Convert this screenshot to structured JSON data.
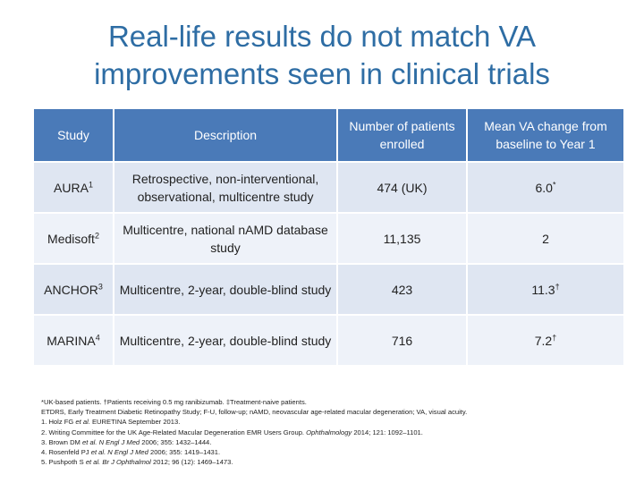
{
  "title": {
    "line1": "Real-life results do not match VA",
    "line2": "improvements seen in clinical trials"
  },
  "table": {
    "headers": {
      "study": "Study",
      "description": "Description",
      "patients": "Number of patients enrolled",
      "va_change": "Mean VA change from baseline to Year 1"
    },
    "rows": [
      {
        "study": "AURA",
        "study_ref": "1",
        "description": "Retrospective, non-interventional, observational, multicentre study",
        "patients": "474 (UK)",
        "va_change": "6.0",
        "va_mark": "*"
      },
      {
        "study": "Medisoft",
        "study_ref": "2",
        "description": "Multicentre, national nAMD database study",
        "patients": "11,135",
        "va_change": "2",
        "va_mark": ""
      },
      {
        "study": "ANCHOR",
        "study_ref": "3",
        "description": "Multicentre, 2-year, double-blind study",
        "patients": "423",
        "va_change": "11.3",
        "va_mark": "†"
      },
      {
        "study": "MARINA",
        "study_ref": "4",
        "description": "Multicentre, 2-year, double-blind study",
        "patients": "716",
        "va_change": "7.2",
        "va_mark": "†"
      }
    ]
  },
  "footnotes": {
    "line1": "*UK-based patients. †Patients receiving 0.5 mg ranibizumab. ‡Treatment-naive patients.",
    "line2": "ETDRS, Early Treatment Diabetic Retinopathy Study; F-U, follow-up; nAMD, neovascular age-related macular degeneration; VA, visual acuity.",
    "ref1_pre": "1. Holz FG ",
    "ref1_it": "et al.",
    "ref1_post": " EURETINA September 2013.",
    "ref2_pre": "2. Writing Committee for the UK Age-Related Macular Degeneration EMR Users Group. ",
    "ref2_it": "Ophthalmology",
    "ref2_post": " 2014; 121: 1092–1101.",
    "ref3_pre": "3. Brown DM ",
    "ref3_it": "et al. N Engl J Med",
    "ref3_post": " 2006; 355: 1432–1444.",
    "ref4_pre": "4. Rosenfeld PJ ",
    "ref4_it": "et al. N Engl J Med",
    "ref4_post": " 2006; 355: 1419–1431.",
    "ref5_pre": "5. Pushpoth S ",
    "ref5_it": "et al. Br J Ophthalmol",
    "ref5_post": " 2012; 96 (12): 1469–1473."
  }
}
